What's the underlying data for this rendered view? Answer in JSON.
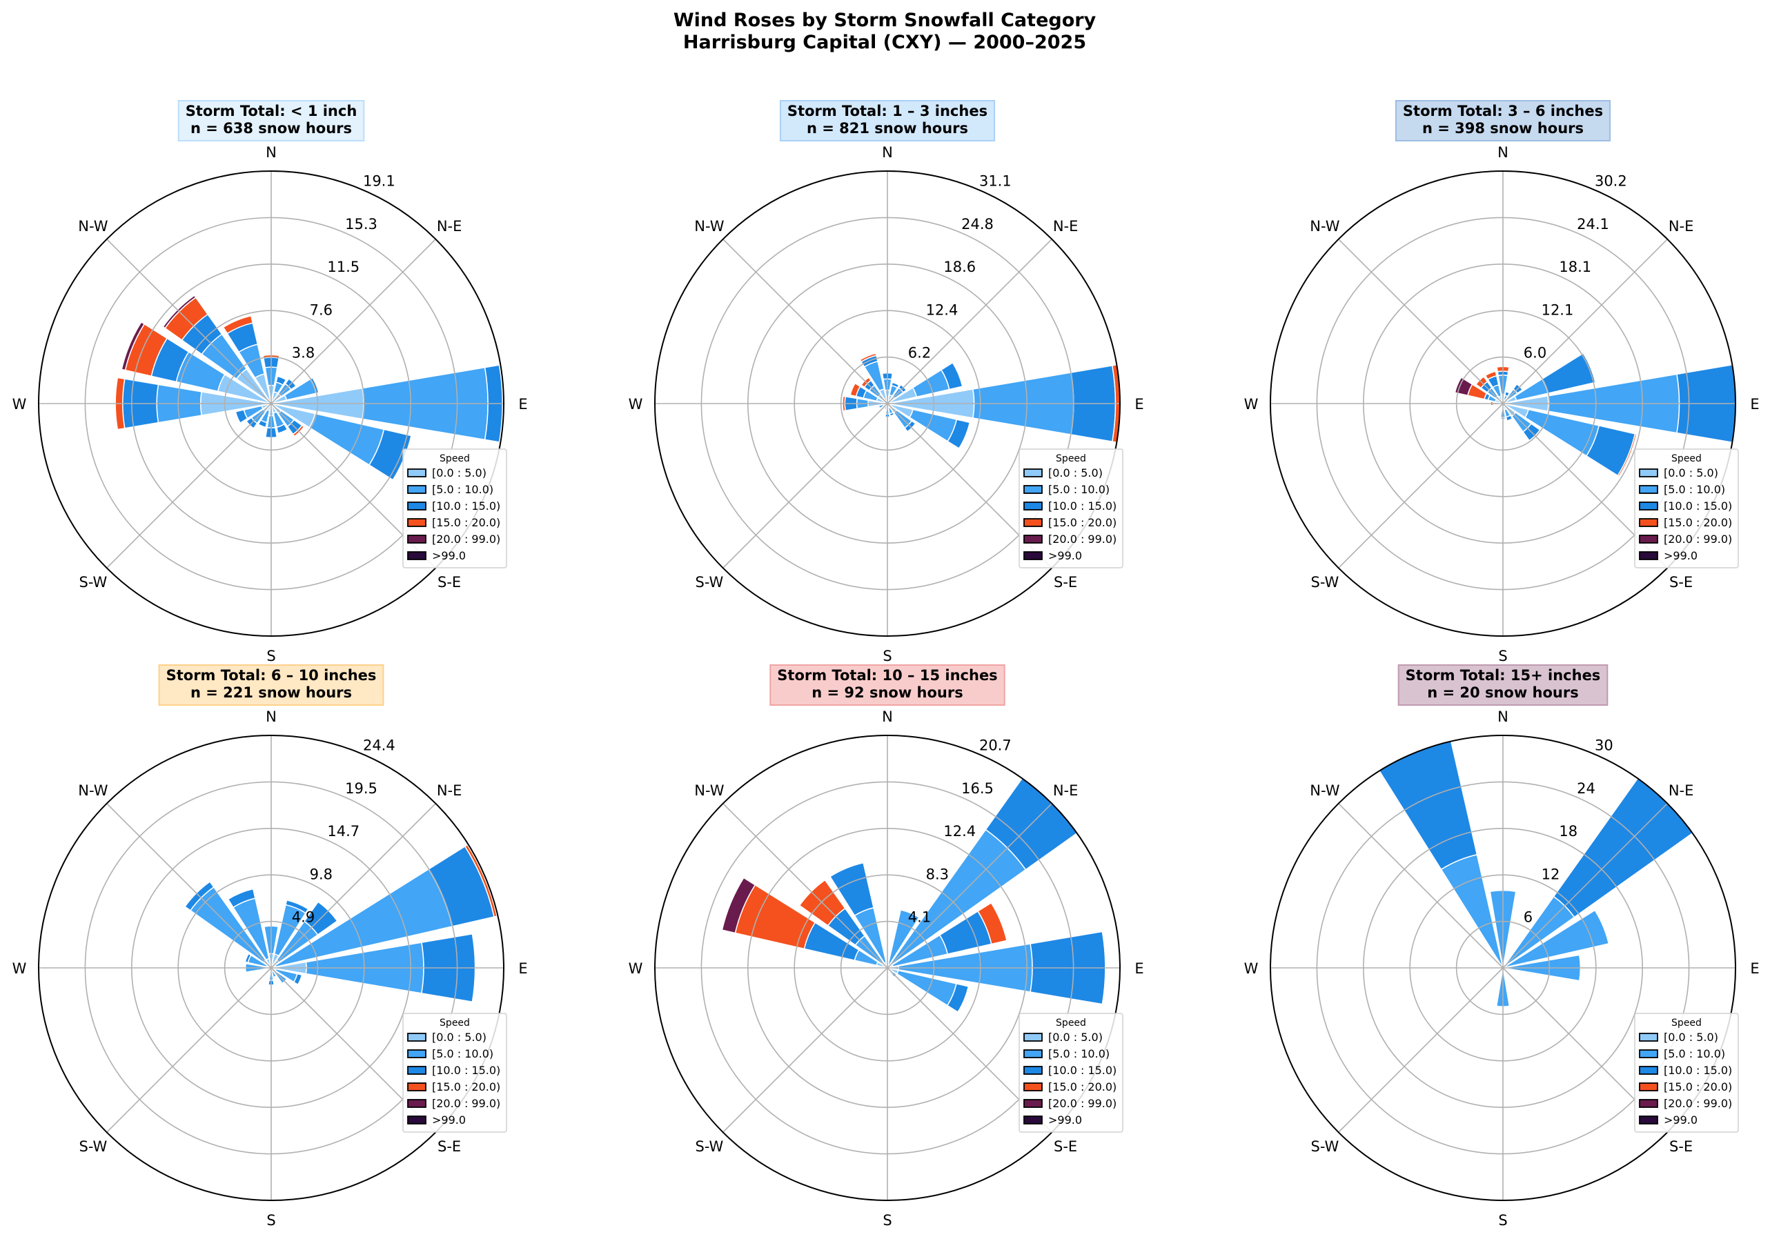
{
  "figure": {
    "title_line1": "Wind Roses by Storm Snowfall Category",
    "title_line2": "Harrisburg Capital (CXY) — 2000–2025"
  },
  "direction_labels": [
    "N",
    "N-E",
    "E",
    "S-E",
    "S",
    "S-W",
    "W",
    "N-W"
  ],
  "legend": {
    "title": "Speed",
    "entries": [
      "[0.0 : 5.0)",
      "[5.0 : 10.0)",
      "[10.0 : 15.0)",
      "[15.0 : 20.0)",
      "[20.0 : 99.0)",
      ">99.0"
    ],
    "colors": [
      "#90caf9",
      "#42a5f5",
      "#1e88e5",
      "#f4511e",
      "#6a1b4d",
      "#2a0a3a"
    ],
    "placement": "lower-right"
  },
  "chart_data": [
    {
      "type": "windrose",
      "title": "Storm Total: < 1 inch",
      "subtitle": "n = 638 snow hours",
      "box_color": "#e3f2fd",
      "box_border": "#bbdefb",
      "rmax": 19.1,
      "rticks": [
        "3.8",
        "7.6",
        "11.5",
        "15.3",
        "19.1"
      ],
      "directions": [
        "N",
        "NNE",
        "NE",
        "ENE",
        "E",
        "ESE",
        "SE",
        "SSE",
        "S",
        "SSW",
        "SW",
        "WSW",
        "W",
        "WNW",
        "NW",
        "NNW"
      ],
      "values": [
        [
          1.5,
          1.5,
          0.8,
          0.2
        ],
        [
          1,
          0.8,
          0.5
        ],
        [
          1,
          1,
          0.5
        ],
        [
          1.3,
          2.5,
          0.2
        ],
        [
          7.6,
          10.2,
          1.2
        ],
        [
          3.7,
          5.8,
          2.3
        ],
        [
          1,
          1.3,
          0.8,
          0.2
        ],
        [
          0.8,
          1.2,
          0.5
        ],
        [
          1,
          1,
          0.8
        ],
        [
          0.6,
          1,
          0.4
        ],
        [
          0.8,
          1.2,
          0.5
        ],
        [
          0.8,
          1.5,
          0.7
        ],
        [
          5.8,
          3.6,
          2.8,
          0.6
        ],
        [
          4.5,
          3.5,
          2.1,
          2.2,
          0.3
        ],
        [
          3.5,
          3.5,
          2,
          1.7,
          0.2
        ],
        [
          2.5,
          2.5,
          1.8,
          0.6
        ]
      ]
    },
    {
      "type": "windrose",
      "title": "Storm Total: 1 – 3 inches",
      "subtitle": "n = 821 snow hours",
      "box_color": "#d2e8fb",
      "box_border": "#a9d1f5",
      "rmax": 31.1,
      "rticks": [
        "6.2",
        "12.4",
        "18.6",
        "24.8",
        "31.1"
      ],
      "directions": [
        "N",
        "NNE",
        "NE",
        "ENE",
        "E",
        "ESE",
        "SE",
        "SSE",
        "S",
        "SSW",
        "SW",
        "WSW",
        "W",
        "WNW",
        "NW",
        "NNW"
      ],
      "values": [
        [
          1.8,
          1.5,
          0.8,
          0.1
        ],
        [
          1.2,
          1.3,
          0.4
        ],
        [
          1.2,
          1.4,
          0.5
        ],
        [
          4,
          4.5,
          1.8,
          0.1
        ],
        [
          11.6,
          13.3,
          5.6,
          0.6
        ],
        [
          3.5,
          6,
          1.8
        ],
        [
          1.5,
          2.5,
          0.6
        ],
        [
          0.6,
          0.8,
          0.3
        ],
        [
          0.8,
          0.6,
          0.4
        ],
        [
          0.4,
          0.4
        ],
        [
          0.5,
          0.4
        ],
        [
          0.6,
          0.6
        ],
        [
          2.6,
          1.5,
          1.6,
          0.3
        ],
        [
          1.5,
          1.8,
          1,
          0.8
        ],
        [
          1.5,
          1.5,
          0.8,
          0.5
        ],
        [
          2,
          3.8,
          0.8,
          0.3
        ]
      ]
    },
    {
      "type": "windrose",
      "title": "Storm Total: 3 – 6 inches",
      "subtitle": "n = 398 snow hours",
      "box_color": "#c5d9ef",
      "box_border": "#9dbde3",
      "rmax": 30.2,
      "rticks": [
        "6.0",
        "12.1",
        "18.1",
        "24.1",
        "30.2"
      ],
      "directions": [
        "N",
        "NNE",
        "NE",
        "ENE",
        "E",
        "ESE",
        "SE",
        "SSE",
        "S",
        "SSW",
        "SW",
        "WSW",
        "W",
        "WNW",
        "NW",
        "NNW"
      ],
      "values": [
        [
          1.2,
          2.5,
          0.5,
          0.6
        ],
        [
          0.5,
          0.6,
          0.5
        ],
        [
          0.8,
          1.5,
          0.8
        ],
        [
          1.8,
          4.2,
          6.3
        ],
        [
          5.9,
          17,
          7.3
        ],
        [
          3.4,
          9.4,
          4.8,
          0.2
        ],
        [
          2,
          2.5,
          1.4
        ],
        [
          0.8,
          1,
          0.5
        ],
        [
          0.8,
          1,
          0.2
        ],
        [
          0.3
        ],
        [
          0.3
        ],
        [
          0.3
        ],
        [
          0.5,
          0.6,
          0.2,
          0.3
        ],
        [
          1,
          1,
          0.5,
          2.2,
          1.7
        ],
        [
          1.2,
          1.3,
          1,
          0.8
        ],
        [
          1,
          1.5,
          1.2,
          0.6
        ]
      ]
    },
    {
      "type": "windrose",
      "title": "Storm Total: 6 – 10 inches",
      "subtitle": "n = 221 snow hours",
      "box_color": "#ffe8c4",
      "box_border": "#ffd08a",
      "rmax": 24.4,
      "rticks": [
        "4.9",
        "9.8",
        "14.7",
        "19.5",
        "24.4"
      ],
      "directions": [
        "N",
        "NNE",
        "NE",
        "ENE",
        "E",
        "ESE",
        "SE",
        "SSE",
        "S",
        "SSW",
        "SW",
        "WSW",
        "W",
        "WNW",
        "NW",
        "NNW"
      ],
      "values": [
        [
          1.5,
          2.9
        ],
        [
          1.5,
          5.3,
          0.5
        ],
        [
          1,
          5,
          2.5
        ],
        [
          0.5,
          19,
          4.5,
          0.3
        ],
        [
          3.7,
          12.3,
          5.4
        ],
        [
          0.5,
          2.3,
          0.5
        ],
        [
          0.5,
          1.5
        ],
        [
          0.3,
          0.7
        ],
        [
          0.3,
          1,
          0.5
        ],
        [],
        [],
        [],
        [
          0.5,
          2.2
        ],
        [
          0.5,
          2,
          0.3
        ],
        [
          1,
          9.4,
          0.7
        ],
        [
          1,
          6.5,
          1
        ]
      ]
    },
    {
      "type": "windrose",
      "title": "Storm Total: 10 – 15 inches",
      "subtitle": "n = 92 snow hours",
      "box_color": "#f9cccc",
      "box_border": "#f0a3a3",
      "rmax": 20.7,
      "rticks": [
        "4.1",
        "8.3",
        "12.4",
        "16.5",
        "20.7"
      ],
      "directions": [
        "N",
        "NNE",
        "NE",
        "ENE",
        "E",
        "ESE",
        "SE",
        "SSE",
        "S",
        "SSW",
        "SW",
        "WSW",
        "W",
        "WNW",
        "NW",
        "NNW"
      ],
      "values": [
        [],
        [
          0.3,
          5
        ],
        [
          0.5,
          14.6,
          5.6
        ],
        [
          0.5,
          5,
          4,
          1.4
        ],
        [
          1,
          11.9,
          6.5
        ],
        [
          1,
          5.3,
          1.1
        ],
        [
          0.5,
          0.5
        ],
        [],
        [],
        [],
        [],
        [],
        [],
        [
          1,
          2,
          4.6,
          6.3,
          1.2
        ],
        [
          0.5,
          3,
          3,
          3.1
        ],
        [
          0.5,
          5,
          4.1
        ]
      ]
    },
    {
      "type": "windrose",
      "title": "Storm Total: 15+ inches",
      "subtitle": "n = 20 snow hours",
      "box_color": "#d9c3d1",
      "box_border": "#c09aaf",
      "rmax": 30,
      "rticks": [
        "6",
        "12",
        "18",
        "24",
        "30"
      ],
      "directions": [
        "N",
        "NNE",
        "NE",
        "ENE",
        "E",
        "ESE",
        "SE",
        "SSE",
        "S",
        "SSW",
        "SW",
        "WSW",
        "W",
        "WNW",
        "NW",
        "NNW"
      ],
      "values": [
        [
          0,
          10
        ],
        [],
        [
          0,
          11.3,
          18.7
        ],
        [
          0,
          14
        ],
        [
          0,
          10
        ],
        [],
        [],
        [],
        [
          0,
          5
        ],
        [],
        [],
        [],
        [],
        [],
        [],
        [
          0,
          15,
          15
        ]
      ]
    }
  ]
}
